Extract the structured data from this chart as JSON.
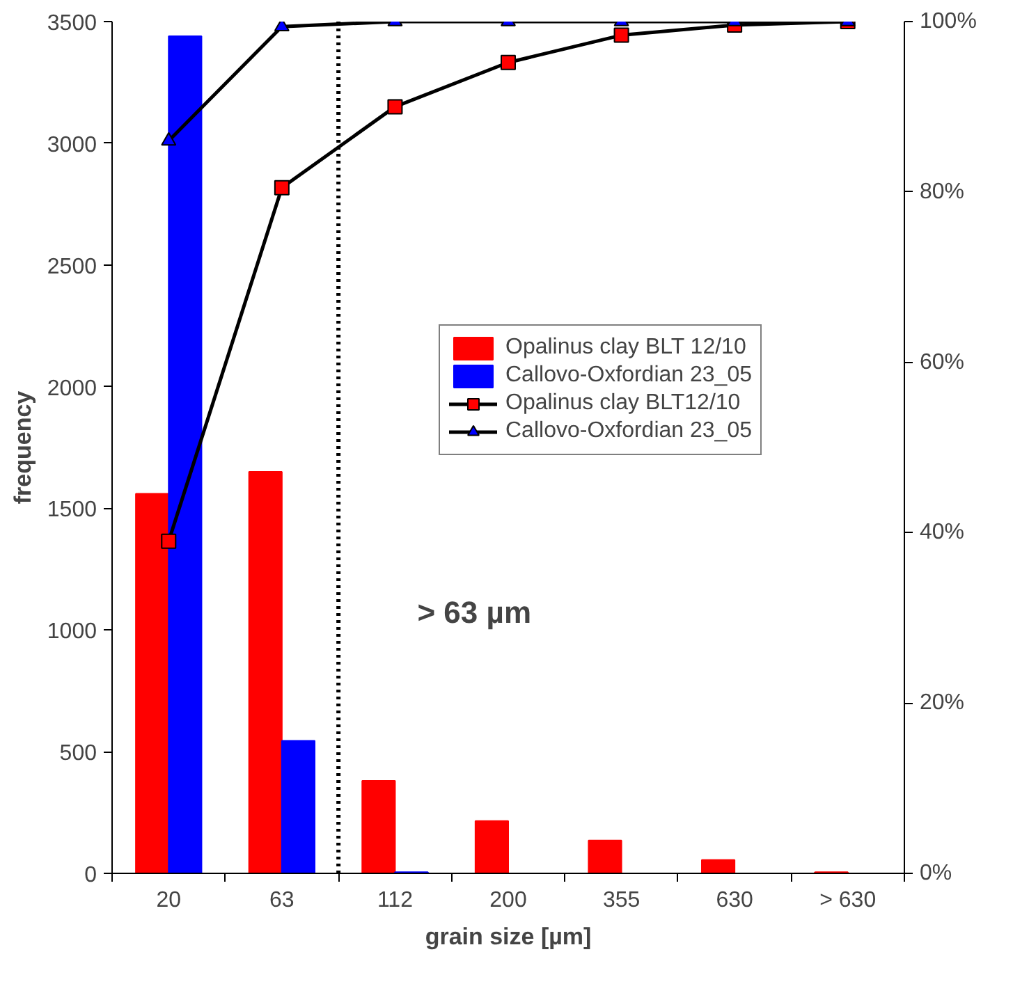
{
  "chart_data": {
    "type": "bar",
    "xlabel": "grain size [µm]",
    "ylabel": "frequency",
    "categories": [
      "20",
      "63",
      "112",
      "200",
      "355",
      "630",
      "> 630"
    ],
    "series": [
      {
        "name": "Opalinus clay BLT 12/10",
        "color": "#ff0000",
        "values": [
          1560,
          1650,
          380,
          215,
          135,
          55,
          5
        ]
      },
      {
        "name": "Callovo-Oxfordian 23_05",
        "color": "#0000ff",
        "values": [
          3440,
          545,
          5,
          0,
          0,
          0,
          0
        ]
      },
      {
        "name": "Opalinus clay BLT12/10",
        "type": "line",
        "axis": "y2",
        "marker": "square",
        "color": "#ff0000",
        "values": [
          39,
          80.5,
          90,
          95.2,
          98.4,
          99.6,
          100
        ]
      },
      {
        "name": "Callovo-Oxfordian 23_05",
        "type": "line",
        "axis": "y2",
        "marker": "triangle",
        "color": "#0000ff",
        "values": [
          86,
          99.4,
          100,
          100,
          100,
          100,
          100
        ]
      }
    ],
    "ylim": [
      0,
      3500
    ],
    "yticks": [
      0,
      500,
      1000,
      1500,
      2000,
      2500,
      3000,
      3500
    ],
    "y2lim": [
      0,
      100
    ],
    "y2ticks": [
      {
        "value": 0,
        "label": "0%"
      },
      {
        "value": 20,
        "label": "20%"
      },
      {
        "value": 40,
        "label": "40%"
      },
      {
        "value": 60,
        "label": "60%"
      },
      {
        "value": 80,
        "label": "80%"
      },
      {
        "value": 100,
        "label": "100%"
      }
    ],
    "annotations": [
      "> 63 µm"
    ],
    "legend": "top right",
    "grid": false
  }
}
